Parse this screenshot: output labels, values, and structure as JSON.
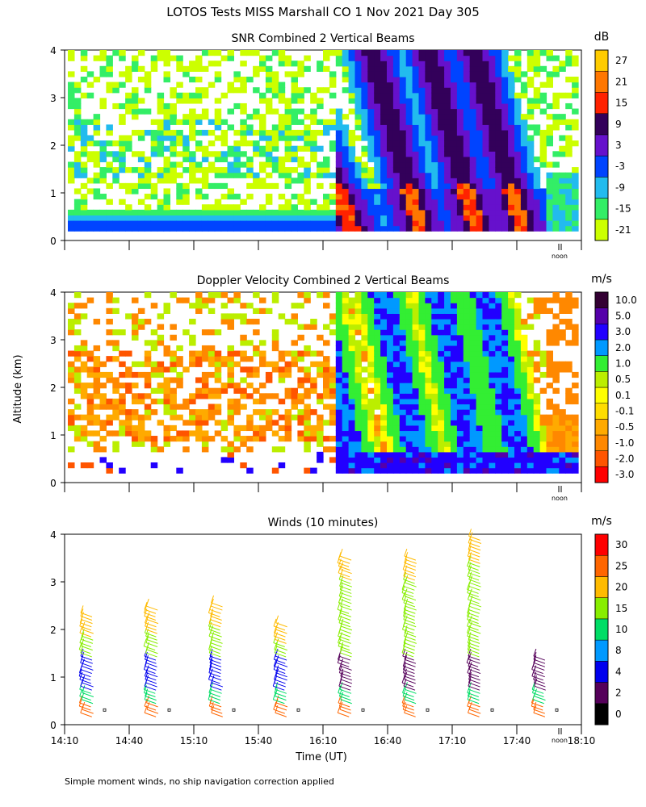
{
  "title": "LOTOS Tests MISS Marshall CO   1 Nov 2021 Day 305",
  "ylabel": "Altitude (km)",
  "xlabel": "Time (UT)",
  "footnote": "Simple moment winds, no ship navigation correction applied",
  "noon_label": "noon",
  "x_ticks": [
    "14:10",
    "14:40",
    "15:10",
    "15:40",
    "16:10",
    "16:40",
    "17:10",
    "17:40",
    "18:10"
  ],
  "chart_data": [
    {
      "type": "heatmap",
      "title": "SNR Combined 2 Vertical Beams",
      "units": "dB",
      "ylim": [
        0,
        4
      ],
      "y_ticks": [
        0,
        1,
        2,
        3,
        4
      ],
      "legend": [
        "-21",
        "-15",
        "-9",
        "-3",
        "3",
        "9",
        "15",
        "21",
        "27"
      ],
      "colors": [
        "#ccff00",
        "#33ee66",
        "#22bbee",
        "#0044ff",
        "#6611cc",
        "#33005a",
        "#ff2200",
        "#ff7700",
        "#ffcc00"
      ]
    },
    {
      "type": "heatmap",
      "title": "Doppler Velocity Combined 2 Vertical Beams",
      "units": "m/s",
      "ylim": [
        0,
        4
      ],
      "y_ticks": [
        0,
        1,
        2,
        3,
        4
      ],
      "legend": [
        "-3.0",
        "-2.0",
        "-1.0",
        "-0.5",
        "-0.1",
        "0.1",
        "0.5",
        "1.0",
        "2.0",
        "3.0",
        "5.0",
        "10.0"
      ],
      "colors": [
        "#ff0000",
        "#ff5500",
        "#ff8800",
        "#ffaa00",
        "#ffdd00",
        "#ffff00",
        "#bbee00",
        "#33ee33",
        "#0099ff",
        "#2200ff",
        "#5500aa",
        "#330033"
      ]
    },
    {
      "type": "scatter",
      "title": "Winds (10 minutes)",
      "units": "m/s",
      "ylim": [
        0,
        4
      ],
      "y_ticks": [
        0,
        1,
        2,
        3,
        4
      ],
      "legend": [
        "0",
        "2",
        "4",
        "8",
        "10",
        "15",
        "20",
        "25",
        "30"
      ],
      "colors": [
        "#000000",
        "#55005a",
        "#0000ee",
        "#0099ff",
        "#00dd66",
        "#88ee00",
        "#ffbb00",
        "#ff6600",
        "#ff0000"
      ],
      "x": [
        "14:25",
        "14:55",
        "15:25",
        "15:55",
        "16:25",
        "16:55",
        "17:25",
        "17:55"
      ],
      "top_km": [
        2.4,
        2.5,
        2.6,
        2.2,
        3.6,
        3.6,
        4.0,
        1.5
      ]
    }
  ]
}
